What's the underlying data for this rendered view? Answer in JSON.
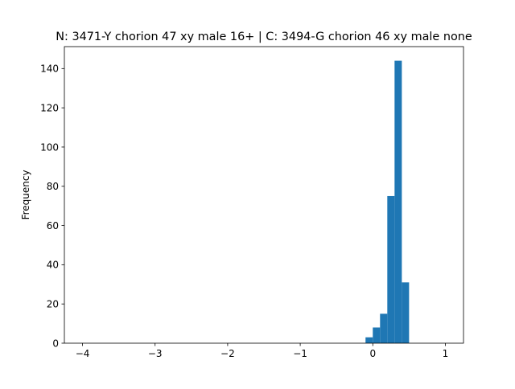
{
  "chart_data": {
    "type": "bar",
    "title": "N: 3471-Y chorion 47 xy male 16+ | C: 3494-G chorion 46 xy male none",
    "xlabel": "",
    "ylabel": "Frequency",
    "xlim": [
      -4.25,
      1.25
    ],
    "ylim": [
      0,
      151.2
    ],
    "x_ticks": [
      -4,
      -3,
      -2,
      -1,
      0,
      1
    ],
    "x_tick_labels": [
      "−4",
      "−3",
      "−2",
      "−1",
      "0",
      "1"
    ],
    "y_ticks": [
      0,
      20,
      40,
      60,
      80,
      100,
      120,
      140
    ],
    "y_tick_labels": [
      "0",
      "20",
      "40",
      "60",
      "80",
      "100",
      "120",
      "140"
    ],
    "bar_color": "#1f77b4",
    "bins": [
      {
        "x0": -0.1,
        "x1": 0.0,
        "value": 3
      },
      {
        "x0": 0.0,
        "x1": 0.1,
        "value": 8
      },
      {
        "x0": 0.1,
        "x1": 0.2,
        "value": 15
      },
      {
        "x0": 0.2,
        "x1": 0.3,
        "value": 75
      },
      {
        "x0": 0.3,
        "x1": 0.4,
        "value": 144
      },
      {
        "x0": 0.4,
        "x1": 0.5,
        "value": 31
      }
    ],
    "grid": false,
    "legend": "none"
  }
}
